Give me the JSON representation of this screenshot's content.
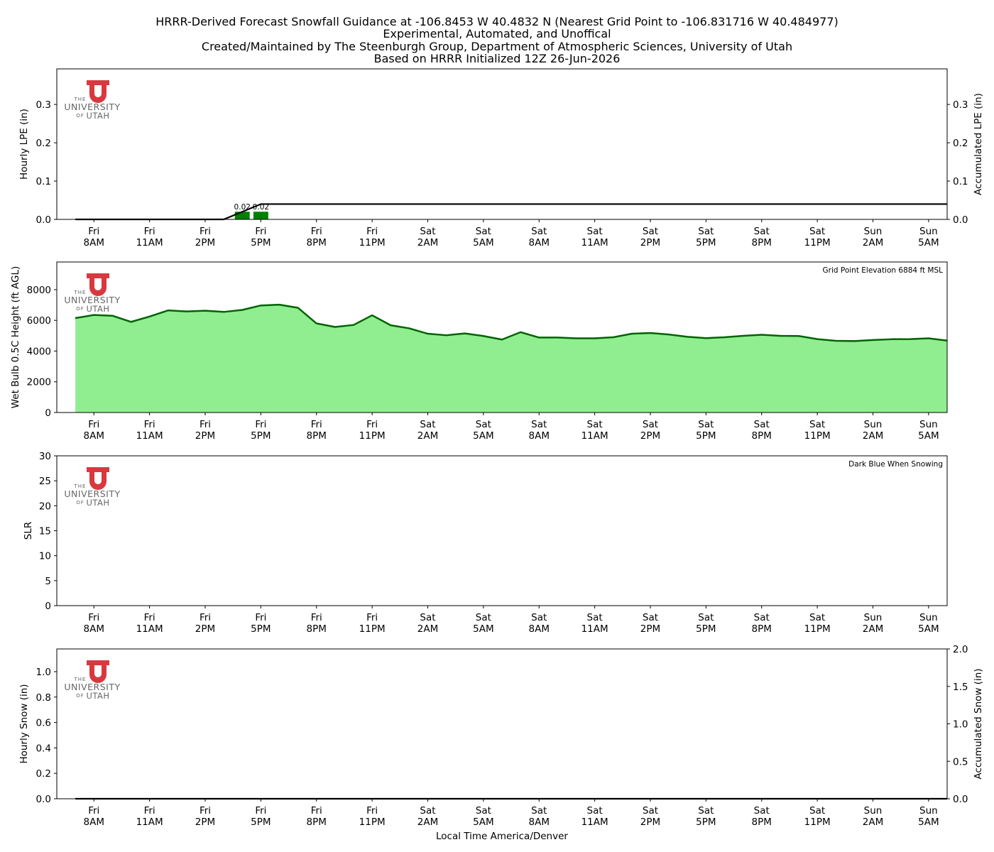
{
  "header": {
    "title_lines": [
      "HRRR-Derived Forecast Snowfall Guidance at -106.8453 W 40.4832 N (Nearest Grid Point to -106.831716 W 40.484977)",
      "Experimental, Automated, and Unoffical",
      "Created/Maintained by The Steenburgh Group, Department of Atmospheric Sciences, University of Utah",
      "Based on HRRR Initialized 12Z 26-Jun-2026"
    ]
  },
  "logo": {
    "the": "THE",
    "university": "UNIVERSITY",
    "of": "OF",
    "utah": "UTAH",
    "color": "#d9383f"
  },
  "xaxis": {
    "label": "Local Time America/Denver",
    "ticks": [
      {
        "day": "Fri",
        "time": "8AM"
      },
      {
        "day": "Fri",
        "time": "11AM"
      },
      {
        "day": "Fri",
        "time": "2PM"
      },
      {
        "day": "Fri",
        "time": "5PM"
      },
      {
        "day": "Fri",
        "time": "8PM"
      },
      {
        "day": "Fri",
        "time": "11PM"
      },
      {
        "day": "Sat",
        "time": "2AM"
      },
      {
        "day": "Sat",
        "time": "5AM"
      },
      {
        "day": "Sat",
        "time": "8AM"
      },
      {
        "day": "Sat",
        "time": "11AM"
      },
      {
        "day": "Sat",
        "time": "2PM"
      },
      {
        "day": "Sat",
        "time": "5PM"
      },
      {
        "day": "Sat",
        "time": "8PM"
      },
      {
        "day": "Sat",
        "time": "11PM"
      },
      {
        "day": "Sun",
        "time": "2AM"
      },
      {
        "day": "Sun",
        "time": "5AM"
      }
    ]
  },
  "colors": {
    "precip_bar": "#008000",
    "wetbulb_fill": "#90ee90",
    "wetbulb_line": "#006400",
    "line": "#000000"
  },
  "chart_data": [
    {
      "type": "bar",
      "panel": "lpe",
      "ylabel": "Hourly LPE (in)",
      "ylabel_right": "Accumulated LPE (in)",
      "ylim": [
        0,
        0.3929
      ],
      "yticks": [
        0.0,
        0.1,
        0.2,
        0.3
      ],
      "ytick_labels": [
        "0.0",
        "0.1",
        "0.2",
        "0.3"
      ],
      "y2lim": [
        0,
        0.3929
      ],
      "y2ticks": [
        0.0,
        0.1,
        0.2,
        0.3
      ],
      "y2tick_labels": [
        "0.0",
        "0.1",
        "0.2",
        "0.3"
      ],
      "series": [
        {
          "name": "Hourly LPE",
          "kind": "bar",
          "points": [
            {
              "x": 16,
              "y": 0.02,
              "label": "0.02"
            },
            {
              "x": 17,
              "y": 0.02,
              "label": "0.02"
            }
          ]
        },
        {
          "name": "Accumulated LPE",
          "kind": "line",
          "points": [
            {
              "x": 7,
              "y": 0.0
            },
            {
              "x": 15,
              "y": 0.0
            },
            {
              "x": 16,
              "y": 0.02
            },
            {
              "x": 17,
              "y": 0.04
            },
            {
              "x": 54,
              "y": 0.04
            }
          ]
        }
      ]
    },
    {
      "type": "area",
      "panel": "wetbulb",
      "ylabel": "Wet Bulb 0.5C Height (ft AGL)",
      "note": "Grid Point Elevation 6884 ft MSL",
      "ylim": [
        0,
        9800
      ],
      "yticks": [
        0,
        2000,
        4000,
        6000,
        8000
      ],
      "ytick_labels": [
        "0",
        "2000",
        "4000",
        "6000",
        "8000"
      ],
      "series": [
        {
          "name": "Wet Bulb 0.5C Height",
          "points": [
            {
              "x": 7,
              "y": 6150
            },
            {
              "x": 8,
              "y": 6350
            },
            {
              "x": 9,
              "y": 6300
            },
            {
              "x": 10,
              "y": 5900
            },
            {
              "x": 11,
              "y": 6250
            },
            {
              "x": 12,
              "y": 6650
            },
            {
              "x": 13,
              "y": 6580
            },
            {
              "x": 14,
              "y": 6630
            },
            {
              "x": 15,
              "y": 6550
            },
            {
              "x": 16,
              "y": 6680
            },
            {
              "x": 17,
              "y": 6970
            },
            {
              "x": 18,
              "y": 7020
            },
            {
              "x": 19,
              "y": 6820
            },
            {
              "x": 20,
              "y": 5800
            },
            {
              "x": 21,
              "y": 5570
            },
            {
              "x": 22,
              "y": 5700
            },
            {
              "x": 23,
              "y": 6330
            },
            {
              "x": 24,
              "y": 5680
            },
            {
              "x": 25,
              "y": 5480
            },
            {
              "x": 26,
              "y": 5130
            },
            {
              "x": 27,
              "y": 5030
            },
            {
              "x": 28,
              "y": 5150
            },
            {
              "x": 29,
              "y": 4980
            },
            {
              "x": 30,
              "y": 4750
            },
            {
              "x": 31,
              "y": 5230
            },
            {
              "x": 32,
              "y": 4880
            },
            {
              "x": 33,
              "y": 4880
            },
            {
              "x": 34,
              "y": 4830
            },
            {
              "x": 35,
              "y": 4830
            },
            {
              "x": 36,
              "y": 4900
            },
            {
              "x": 37,
              "y": 5130
            },
            {
              "x": 38,
              "y": 5180
            },
            {
              "x": 39,
              "y": 5080
            },
            {
              "x": 40,
              "y": 4930
            },
            {
              "x": 41,
              "y": 4840
            },
            {
              "x": 42,
              "y": 4900
            },
            {
              "x": 43,
              "y": 4990
            },
            {
              "x": 44,
              "y": 5060
            },
            {
              "x": 45,
              "y": 4990
            },
            {
              "x": 46,
              "y": 4980
            },
            {
              "x": 47,
              "y": 4780
            },
            {
              "x": 48,
              "y": 4670
            },
            {
              "x": 49,
              "y": 4650
            },
            {
              "x": 50,
              "y": 4720
            },
            {
              "x": 51,
              "y": 4770
            },
            {
              "x": 52,
              "y": 4780
            },
            {
              "x": 53,
              "y": 4830
            },
            {
              "x": 54,
              "y": 4680
            }
          ]
        }
      ]
    },
    {
      "type": "scatter",
      "panel": "slr",
      "ylabel": "SLR",
      "note": "Dark Blue When Snowing",
      "ylim": [
        0,
        30
      ],
      "yticks": [
        0,
        5,
        10,
        15,
        20,
        25,
        30
      ],
      "ytick_labels": [
        "0",
        "5",
        "10",
        "15",
        "20",
        "25",
        "30"
      ],
      "series": []
    },
    {
      "type": "bar",
      "panel": "snow",
      "ylabel": "Hourly Snow (in)",
      "ylabel_right": "Accumulated Snow (in)",
      "ylim": [
        0,
        1.1786
      ],
      "yticks": [
        0.0,
        0.2,
        0.4,
        0.6,
        0.8,
        1.0
      ],
      "ytick_labels": [
        "0.0",
        "0.2",
        "0.4",
        "0.6",
        "0.8",
        "1.0"
      ],
      "y2lim": [
        0,
        2.0
      ],
      "y2ticks": [
        0.0,
        0.5,
        1.0,
        1.5,
        2.0
      ],
      "y2tick_labels": [
        "0.0",
        "0.5",
        "1.0",
        "1.5",
        "2.0"
      ],
      "series": [
        {
          "name": "Accumulated Snow",
          "kind": "line",
          "points": [
            {
              "x": 7,
              "y": 0.0
            },
            {
              "x": 54,
              "y": 0.0
            }
          ]
        }
      ]
    }
  ]
}
